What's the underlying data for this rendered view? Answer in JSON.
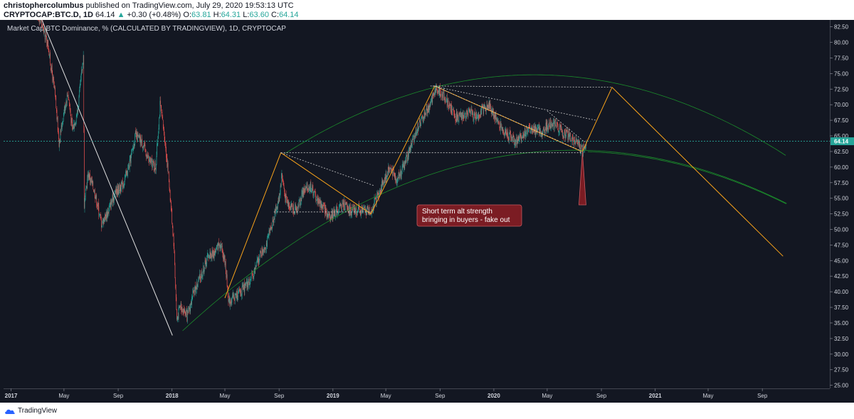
{
  "header": {
    "author": "christophercolumbus",
    "published_text": "published on TradingView.com, July 29, 2020 19:53:13 UTC",
    "symbol": "CRYPTOCAP:BTC.D, 1D",
    "last": "64.14",
    "change": "+0.30 (+0.48%)",
    "o_label": "O:",
    "o_value": "63.81",
    "h_label": "H:",
    "h_value": "64.31",
    "l_label": "L:",
    "l_value": "63.60",
    "c_label": "C:",
    "c_value": "64.14"
  },
  "footer": {
    "brand": "TradingView"
  },
  "colors": {
    "background": "#131722",
    "up": "#26a69a",
    "down": "#ef5350",
    "trend": "#f7a21b",
    "arc": "#1b8a2b",
    "callout": "#7b1c23"
  },
  "chart_data": {
    "type": "candlestick",
    "title": "Market Cap BTC Dominance, % (CALCULATED BY TRADINGVIEW), 1D, CRYPTOCAP",
    "ylabel": "",
    "ylim": [
      24.5,
      83.6
    ],
    "xlim": [
      "2016-12-15",
      "2022-02-01"
    ],
    "y_ticks": [
      "82.50",
      "80.00",
      "77.50",
      "75.00",
      "72.50",
      "70.00",
      "67.50",
      "65.00",
      "62.50",
      "60.00",
      "57.50",
      "55.00",
      "52.50",
      "50.00",
      "47.50",
      "45.00",
      "42.50",
      "40.00",
      "37.50",
      "35.00",
      "32.50",
      "30.00",
      "27.50",
      "25.00"
    ],
    "y_tick_values": [
      82.5,
      80,
      77.5,
      75,
      72.5,
      70,
      67.5,
      65,
      62.5,
      60,
      57.5,
      55,
      52.5,
      50,
      47.5,
      45,
      42.5,
      40,
      37.5,
      35,
      32.5,
      30,
      27.5,
      25
    ],
    "x_ticks": [
      {
        "label": "2017",
        "date": "2017-01-01",
        "bold": true
      },
      {
        "label": "May",
        "date": "2017-05-01",
        "bold": false
      },
      {
        "label": "Sep",
        "date": "2017-09-01",
        "bold": false
      },
      {
        "label": "2018",
        "date": "2018-01-01",
        "bold": true
      },
      {
        "label": "May",
        "date": "2018-05-01",
        "bold": false
      },
      {
        "label": "Sep",
        "date": "2018-09-01",
        "bold": false
      },
      {
        "label": "2019",
        "date": "2019-01-01",
        "bold": true
      },
      {
        "label": "May",
        "date": "2019-05-01",
        "bold": false
      },
      {
        "label": "Sep",
        "date": "2019-09-01",
        "bold": false
      },
      {
        "label": "2020",
        "date": "2020-01-01",
        "bold": true
      },
      {
        "label": "May",
        "date": "2020-05-01",
        "bold": false
      },
      {
        "label": "Sep",
        "date": "2020-09-01",
        "bold": false
      },
      {
        "label": "2021",
        "date": "2021-01-01",
        "bold": true
      },
      {
        "label": "May",
        "date": "2021-05-01",
        "bold": false
      },
      {
        "label": "Sep",
        "date": "2021-09-01",
        "bold": false
      }
    ],
    "price_path": [
      [
        "2017-03-01",
        85.0
      ],
      [
        "2017-03-25",
        80.0
      ],
      [
        "2017-04-10",
        72.0
      ],
      [
        "2017-04-20",
        64.0
      ],
      [
        "2017-05-01",
        69.0
      ],
      [
        "2017-05-10",
        72.0
      ],
      [
        "2017-05-20",
        66.0
      ],
      [
        "2017-06-01",
        69.0
      ],
      [
        "2017-06-10",
        75.0
      ],
      [
        "2017-06-14",
        78.0
      ],
      [
        "2017-06-16",
        54.0
      ],
      [
        "2017-06-25",
        59.0
      ],
      [
        "2017-07-10",
        56.0
      ],
      [
        "2017-07-25",
        51.0
      ],
      [
        "2017-08-10",
        53.0
      ],
      [
        "2017-08-25",
        56.0
      ],
      [
        "2017-09-10",
        57.0
      ],
      [
        "2017-09-25",
        60.0
      ],
      [
        "2017-10-10",
        65.0
      ],
      [
        "2017-10-25",
        64.0
      ],
      [
        "2017-11-10",
        61.0
      ],
      [
        "2017-11-25",
        60.0
      ],
      [
        "2017-12-05",
        70.0
      ],
      [
        "2017-12-15",
        65.0
      ],
      [
        "2017-12-25",
        58.0
      ],
      [
        "2018-01-05",
        48.0
      ],
      [
        "2018-01-12",
        35.5
      ],
      [
        "2018-01-20",
        38.0
      ],
      [
        "2018-02-05",
        36.0
      ],
      [
        "2018-02-20",
        40.0
      ],
      [
        "2018-03-10",
        43.0
      ],
      [
        "2018-03-25",
        46.0
      ],
      [
        "2018-04-05",
        46.0
      ],
      [
        "2018-04-20",
        48.0
      ],
      [
        "2018-05-01",
        45.0
      ],
      [
        "2018-05-10",
        38.5
      ],
      [
        "2018-05-20",
        39.0
      ],
      [
        "2018-06-05",
        40.0
      ],
      [
        "2018-06-20",
        41.0
      ],
      [
        "2018-07-05",
        43.0
      ],
      [
        "2018-07-20",
        46.0
      ],
      [
        "2018-08-05",
        48.0
      ],
      [
        "2018-08-20",
        52.0
      ],
      [
        "2018-09-01",
        55.0
      ],
      [
        "2018-09-07",
        59.0
      ],
      [
        "2018-09-15",
        55.0
      ],
      [
        "2018-09-25",
        54.0
      ],
      [
        "2018-10-10",
        53.0
      ],
      [
        "2018-10-25",
        56.0
      ],
      [
        "2018-11-10",
        57.0
      ],
      [
        "2018-11-25",
        55.0
      ],
      [
        "2018-12-10",
        53.5
      ],
      [
        "2018-12-25",
        52.0
      ],
      [
        "2019-01-10",
        53.0
      ],
      [
        "2019-01-25",
        54.0
      ],
      [
        "2019-02-10",
        53.0
      ],
      [
        "2019-02-25",
        53.0
      ],
      [
        "2019-03-15",
        53.0
      ],
      [
        "2019-03-28",
        53.0
      ],
      [
        "2019-04-10",
        55.0
      ],
      [
        "2019-04-25",
        57.5
      ],
      [
        "2019-05-10",
        60.0
      ],
      [
        "2019-05-25",
        58.0
      ],
      [
        "2019-06-10",
        60.0
      ],
      [
        "2019-06-25",
        63.0
      ],
      [
        "2019-07-10",
        66.0
      ],
      [
        "2019-07-25",
        68.0
      ],
      [
        "2019-08-10",
        70.0
      ],
      [
        "2019-08-20",
        72.5
      ],
      [
        "2019-09-05",
        72.0
      ],
      [
        "2019-09-20",
        70.0
      ],
      [
        "2019-10-05",
        68.0
      ],
      [
        "2019-10-20",
        68.0
      ],
      [
        "2019-11-05",
        69.0
      ],
      [
        "2019-11-20",
        68.0
      ],
      [
        "2019-12-05",
        69.0
      ],
      [
        "2019-12-20",
        70.0
      ],
      [
        "2020-01-05",
        68.0
      ],
      [
        "2020-01-20",
        66.0
      ],
      [
        "2020-02-05",
        65.0
      ],
      [
        "2020-02-20",
        64.0
      ],
      [
        "2020-03-05",
        65.0
      ],
      [
        "2020-03-20",
        66.0
      ],
      [
        "2020-04-05",
        66.0
      ],
      [
        "2020-04-20",
        65.5
      ],
      [
        "2020-05-05",
        67.0
      ],
      [
        "2020-05-20",
        67.0
      ],
      [
        "2020-06-05",
        65.5
      ],
      [
        "2020-06-20",
        65.0
      ],
      [
        "2020-07-05",
        64.0
      ],
      [
        "2020-07-15",
        63.0
      ],
      [
        "2020-07-20",
        62.6
      ],
      [
        "2020-07-29",
        64.14
      ]
    ],
    "last_value": 64.14,
    "annotation": "Short term alt strength\nbringing in buyers - fake out",
    "annotation_lines": [
      "Short term alt strength",
      "bringing in buyers - fake out"
    ]
  }
}
